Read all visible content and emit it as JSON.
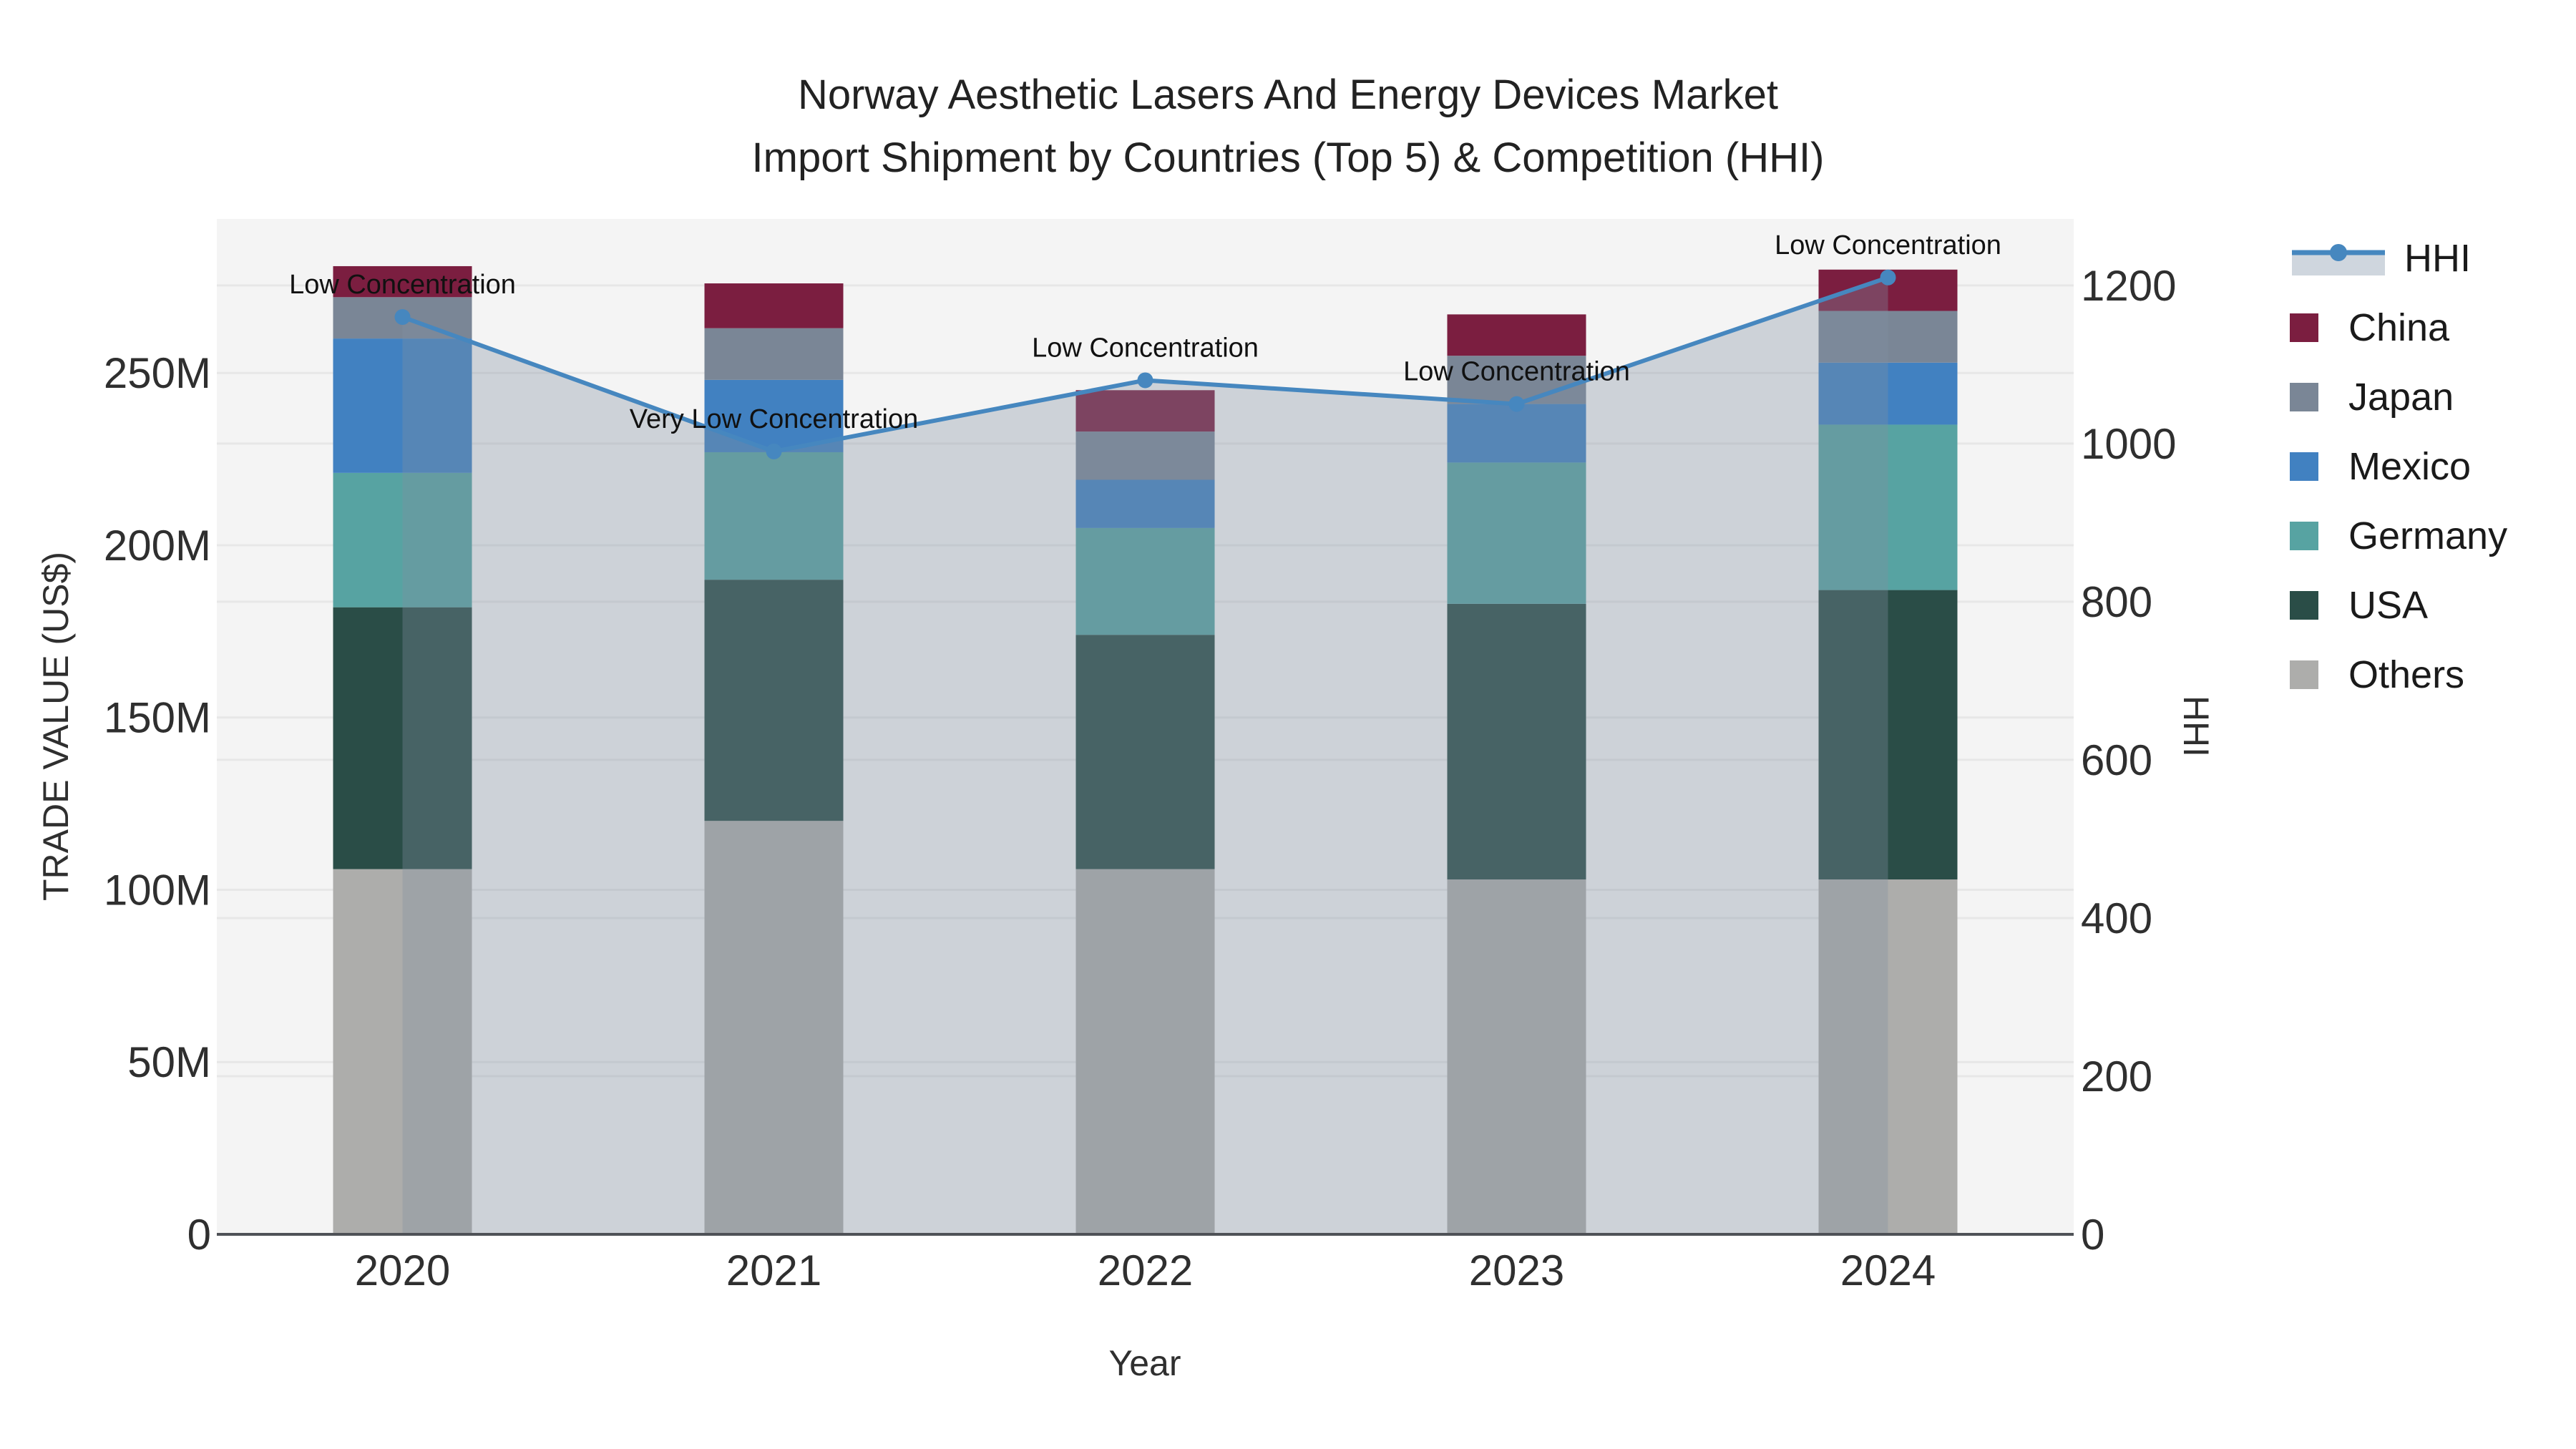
{
  "title": {
    "line1": "Norway Aesthetic Lasers And Energy Devices Market",
    "line2": "Import Shipment by Countries (Top 5) & Competition (HHI)"
  },
  "axes": {
    "x_title": "Year",
    "y_left_title": "TRADE VALUE (US$)",
    "y_right_title": "HHI"
  },
  "chart_data": {
    "type": "bar",
    "subtype": "stacked-bars-with-line",
    "categories": [
      "2020",
      "2021",
      "2022",
      "2023",
      "2024"
    ],
    "stack_order_bottom_to_top": [
      "Others",
      "USA",
      "Germany",
      "Mexico",
      "Japan",
      "China"
    ],
    "series": [
      {
        "name": "Others",
        "color": "#adadab",
        "values": [
          106,
          120,
          106,
          103,
          103
        ]
      },
      {
        "name": "USA",
        "color": "#2a4d47",
        "values": [
          76,
          70,
          68,
          80,
          84
        ]
      },
      {
        "name": "Germany",
        "color": "#57a3a2",
        "values": [
          39,
          37,
          31,
          41,
          48
        ]
      },
      {
        "name": "Mexico",
        "color": "#4181c1",
        "values": [
          39,
          21,
          14,
          17,
          18
        ]
      },
      {
        "name": "Japan",
        "color": "#7a8696",
        "values": [
          12,
          15,
          14,
          14,
          15
        ]
      },
      {
        "name": "China",
        "color": "#7b1e40",
        "values": [
          9,
          13,
          12,
          12,
          12
        ]
      }
    ],
    "line_series": {
      "name": "HHI",
      "axis": "right",
      "color": "#4687bf",
      "fill_color": "rgba(128,143,160,0.34)",
      "values": [
        1160,
        990,
        1080,
        1050,
        1210
      ]
    },
    "annotations": [
      "Low Concentration",
      "Very Low Concentration",
      "Low Concentration",
      "Low Concentration",
      "Low Concentration"
    ],
    "y_left": {
      "unit": "M",
      "ticks": [
        0,
        50,
        100,
        150,
        200,
        250
      ],
      "tick_labels": [
        "0",
        "50M",
        "100M",
        "150M",
        "200M",
        "250M"
      ],
      "range": [
        0,
        294.7
      ]
    },
    "y_right": {
      "ticks": [
        0,
        200,
        400,
        600,
        800,
        1000,
        1200
      ],
      "tick_labels": [
        "0",
        "200",
        "400",
        "600",
        "800",
        "1000",
        "1200"
      ],
      "range": [
        0,
        1284
      ]
    },
    "legend": [
      "HHI",
      "China",
      "Japan",
      "Mexico",
      "Germany",
      "USA",
      "Others"
    ],
    "legend_position": "right",
    "grid": true,
    "colors": {
      "plot_background": "#f4f4f4",
      "gridline": "#e7e7e7",
      "x_axis_line": "#4f5257",
      "legend_hhi_band": "#cfd6de"
    }
  }
}
